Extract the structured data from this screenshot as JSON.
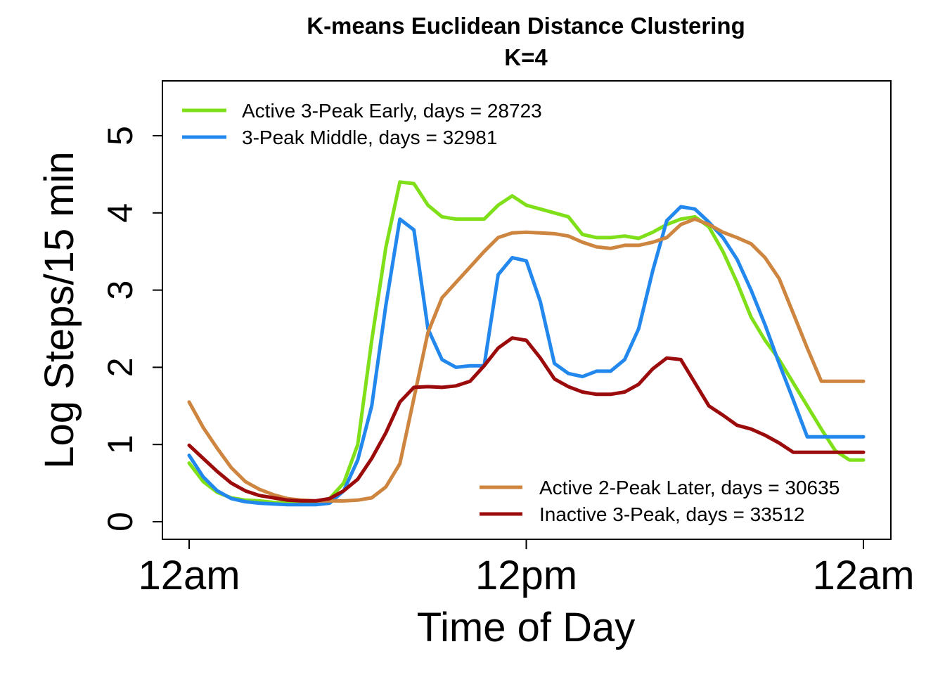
{
  "chart_data": {
    "type": "line",
    "title": "K-means Euclidean Distance Clustering",
    "subtitle": "K=4",
    "xlabel": "Time of Day",
    "ylabel": "Log Steps/15 min",
    "xlim": [
      0,
      24
    ],
    "ylim": [
      -0.2,
      5.7
    ],
    "x_ticks": [
      {
        "value": 0,
        "label": "12am"
      },
      {
        "value": 12,
        "label": "12pm"
      },
      {
        "value": 24,
        "label": "12am"
      }
    ],
    "y_ticks": [
      {
        "value": 0,
        "label": "0"
      },
      {
        "value": 1,
        "label": "1"
      },
      {
        "value": 2,
        "label": "2"
      },
      {
        "value": 3,
        "label": "3"
      },
      {
        "value": 4,
        "label": "4"
      },
      {
        "value": 5,
        "label": "5"
      }
    ],
    "grid": false,
    "x": [
      0,
      0.5,
      1,
      1.5,
      2,
      2.5,
      3,
      3.5,
      4,
      4.5,
      5,
      5.5,
      6,
      6.5,
      7,
      7.5,
      8,
      8.5,
      9,
      9.5,
      10,
      10.5,
      11,
      11.5,
      12,
      12.5,
      13,
      13.5,
      14,
      14.5,
      15,
      15.5,
      16,
      16.5,
      17,
      17.5,
      18,
      18.5,
      19,
      19.5,
      20,
      20.5,
      21,
      21.5,
      22,
      22.5,
      23,
      23.5,
      24
    ],
    "series": [
      {
        "name": "Active 3-Peak Early, days = 28723",
        "color": "#7FE01A",
        "legend": "top-left",
        "values": [
          0.76,
          0.52,
          0.38,
          0.31,
          0.28,
          0.27,
          0.25,
          0.24,
          0.23,
          0.25,
          0.3,
          0.5,
          1.0,
          2.35,
          3.55,
          4.4,
          4.38,
          4.1,
          3.95,
          3.92,
          3.92,
          3.92,
          4.1,
          4.22,
          4.1,
          4.05,
          4.0,
          3.95,
          3.72,
          3.68,
          3.68,
          3.7,
          3.67,
          3.75,
          3.85,
          3.92,
          3.95,
          3.82,
          3.5,
          3.1,
          2.65,
          2.35,
          2.1,
          1.8,
          1.5,
          1.2,
          0.92,
          0.8,
          0.8
        ]
      },
      {
        "name": "3-Peak Middle, days = 32981",
        "color": "#2388EE",
        "legend": "top-left",
        "values": [
          0.86,
          0.58,
          0.4,
          0.3,
          0.26,
          0.24,
          0.23,
          0.22,
          0.22,
          0.22,
          0.24,
          0.4,
          0.8,
          1.5,
          2.8,
          3.92,
          3.78,
          2.5,
          2.1,
          2.0,
          2.02,
          2.02,
          3.2,
          3.42,
          3.38,
          2.85,
          2.05,
          1.92,
          1.88,
          1.95,
          1.95,
          2.1,
          2.5,
          3.25,
          3.9,
          4.08,
          4.05,
          3.88,
          3.68,
          3.4,
          3.0,
          2.55,
          2.05,
          1.58,
          1.1,
          1.1,
          1.1,
          1.1,
          1.1
        ]
      },
      {
        "name": "Active 2-Peak Later, days = 30635",
        "color": "#CD8540",
        "legend": "bottom-right",
        "values": [
          1.55,
          1.22,
          0.95,
          0.7,
          0.52,
          0.42,
          0.35,
          0.3,
          0.28,
          0.27,
          0.27,
          0.27,
          0.28,
          0.31,
          0.45,
          0.75,
          1.6,
          2.45,
          2.9,
          3.1,
          3.3,
          3.5,
          3.68,
          3.74,
          3.75,
          3.74,
          3.73,
          3.7,
          3.62,
          3.56,
          3.54,
          3.58,
          3.58,
          3.62,
          3.68,
          3.85,
          3.92,
          3.85,
          3.75,
          3.68,
          3.6,
          3.42,
          3.15,
          2.7,
          2.25,
          1.82,
          1.82,
          1.82,
          1.82
        ]
      },
      {
        "name": "Inactive 3-Peak, days = 33512",
        "color": "#9B0B0B",
        "legend": "bottom-right",
        "values": [
          0.99,
          0.82,
          0.65,
          0.5,
          0.4,
          0.34,
          0.31,
          0.28,
          0.27,
          0.27,
          0.3,
          0.4,
          0.55,
          0.82,
          1.15,
          1.55,
          1.74,
          1.75,
          1.74,
          1.76,
          1.82,
          2.02,
          2.25,
          2.38,
          2.35,
          2.12,
          1.85,
          1.75,
          1.68,
          1.65,
          1.65,
          1.68,
          1.78,
          1.98,
          2.12,
          2.1,
          1.8,
          1.5,
          1.38,
          1.25,
          1.2,
          1.12,
          1.02,
          0.9,
          0.9,
          0.9,
          0.9,
          0.9,
          0.9
        ]
      }
    ]
  }
}
